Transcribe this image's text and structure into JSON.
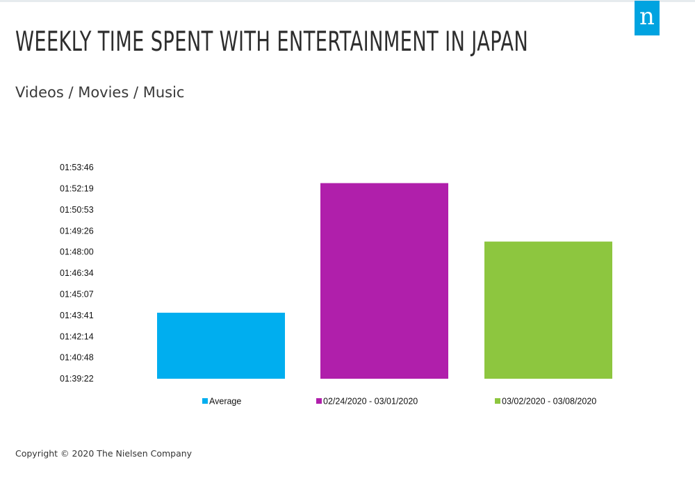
{
  "header": {
    "title": "WEEKLY TIME SPENT WITH ENTERTAINMENT IN JAPAN",
    "subtitle": "Videos / Movies / Music",
    "logo_letter": "n",
    "logo_color": "#00a3e0"
  },
  "chart_data": {
    "type": "bar",
    "title": "WEEKLY TIME SPENT WITH ENTERTAINMENT IN JAPAN",
    "subtitle": "Videos / Movies / Music",
    "xlabel": "",
    "ylabel": "",
    "y_ticks": [
      "01:39:22",
      "01:40:48",
      "01:42:14",
      "01:43:41",
      "01:45:07",
      "01:46:34",
      "01:48:00",
      "01:49:26",
      "01:50:53",
      "01:52:19",
      "01:53:46"
    ],
    "ylim": [
      "01:39:22",
      "01:53:46"
    ],
    "grid": false,
    "legend_position": "bottom",
    "series": [
      {
        "name": "Average",
        "value": "01:43:52",
        "color": "#00aeef"
      },
      {
        "name": "02/24/2020 - 03/01/2020",
        "value": "01:52:42",
        "color": "#b01fab"
      },
      {
        "name": "03/02/2020 - 03/08/2020",
        "value": "01:48:43",
        "color": "#8dc63f"
      }
    ]
  },
  "footer": {
    "copyright": "Copyright © 2020 The Nielsen Company"
  }
}
